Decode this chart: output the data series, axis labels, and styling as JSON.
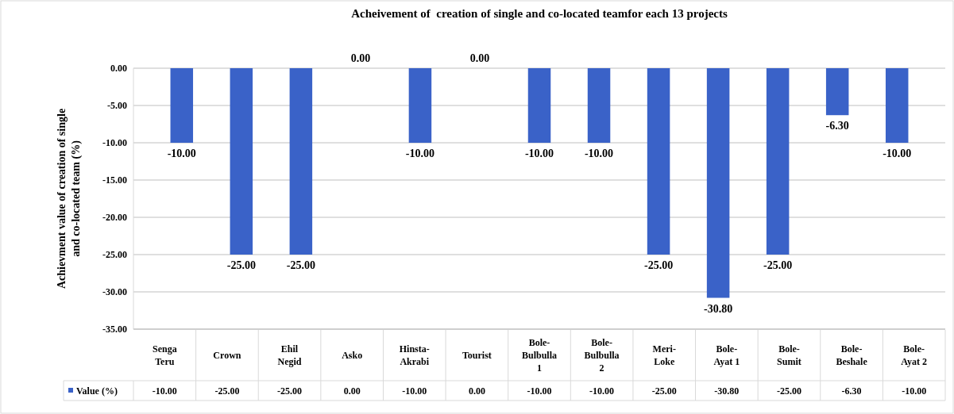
{
  "chart_data": {
    "type": "bar",
    "title": "Acheivement of  creation of single and co-located teamfor each 13 projects",
    "ylabel": "Achievment value of creation of single and co-located team (%)",
    "categories": [
      "Senga Teru",
      "Crown",
      "Ehil Negid",
      "Asko",
      "Hinsta-Akrabi",
      "Tourist",
      "Bole-Bulbulla 1",
      "Bole-Bulbulla 2",
      "Meri-Loke",
      "Bole-Ayat 1",
      "Bole-Sumit",
      "Bole-Beshale",
      "Bole-Ayat 2"
    ],
    "series": [
      {
        "name": "Value (%)",
        "color": "#3a62c8",
        "values": [
          -10,
          -25,
          -25,
          0,
          -10,
          0,
          -10,
          -10,
          -25,
          -30.8,
          -25,
          -6.3,
          -10
        ],
        "value_labels": [
          "-10.00",
          "-25.00",
          "-25.00",
          "0.00",
          "-10.00",
          "0.00",
          "-10.00",
          "-10.00",
          "-25.00",
          "-30.80",
          "-25.00",
          "-6.30",
          "-10.00"
        ]
      }
    ],
    "ylim": [
      -35,
      0
    ],
    "yticks": [
      {
        "value": 0,
        "label": "0.00"
      },
      {
        "value": -5,
        "label": "-5.00"
      },
      {
        "value": -10,
        "label": "-10.00"
      },
      {
        "value": -15,
        "label": "-15.00"
      },
      {
        "value": -20,
        "label": "-20.00"
      },
      {
        "value": -25,
        "label": "-25.00"
      },
      {
        "value": -30,
        "label": "-30.00"
      },
      {
        "value": -35,
        "label": "-35.00"
      }
    ],
    "grid": "y",
    "legend": "bottom"
  }
}
